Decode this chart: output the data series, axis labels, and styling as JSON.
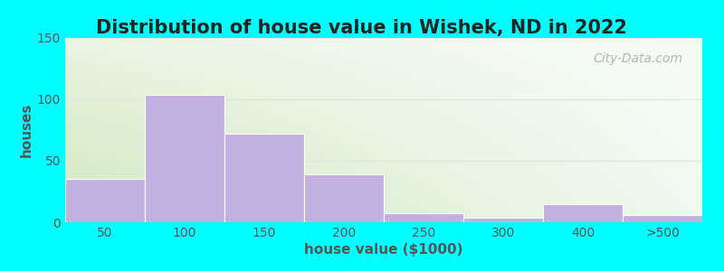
{
  "title": "Distribution of house value in Wishek, ND in 2022",
  "xlabel": "house value ($1000)",
  "ylabel": "houses",
  "bar_labels": [
    "50",
    "100",
    "150",
    "200",
    "250",
    "300",
    "400",
    ">500"
  ],
  "bar_heights": [
    35,
    104,
    72,
    39,
    7,
    4,
    15,
    6
  ],
  "bar_color": "#c4b0e0",
  "bar_edge_color": "#c4b0e0",
  "ylim": [
    0,
    150
  ],
  "yticks": [
    0,
    50,
    100,
    150
  ],
  "background_outer": "#00ffff",
  "grad_top_left": "#e8f5e2",
  "grad_top_right": "#f5fef5",
  "grad_bottom_left": "#d0e8c0",
  "grad_bottom_right": "#eefaee",
  "grid_color": "#e0e8d8",
  "title_fontsize": 15,
  "axis_label_fontsize": 11,
  "tick_fontsize": 10,
  "watermark_text": "City-Data.com"
}
